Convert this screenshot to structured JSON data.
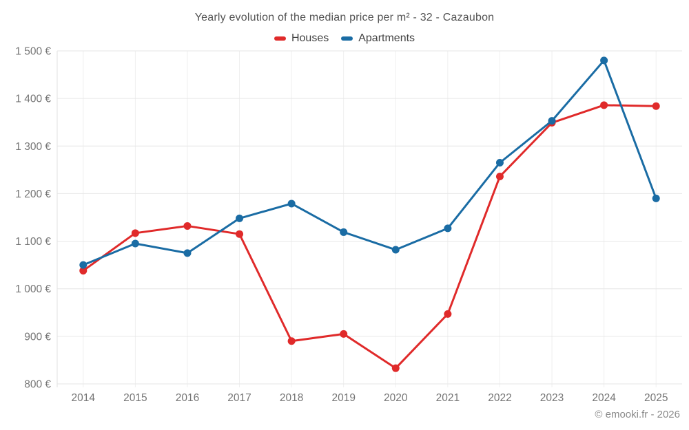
{
  "header": {
    "title": "Yearly evolution of the median price per m² - 32 - Cazaubon"
  },
  "legend": {
    "items": [
      {
        "label": "Houses",
        "color": "#e02a2a"
      },
      {
        "label": "Apartments",
        "color": "#1a6ca4"
      }
    ]
  },
  "footer": {
    "credit": "© emooki.fr - 2026"
  },
  "chart_data": {
    "type": "line",
    "title": "Yearly evolution of the median price per m² - 32 - Cazaubon",
    "categories": [
      "2014",
      "2015",
      "2016",
      "2017",
      "2018",
      "2019",
      "2020",
      "2021",
      "2022",
      "2023",
      "2024",
      "2025"
    ],
    "series": [
      {
        "name": "Houses",
        "color": "#e02a2a",
        "values": [
          1038,
          1117,
          1132,
          1115,
          890,
          905,
          833,
          947,
          1236,
          1349,
          1386,
          1384
        ]
      },
      {
        "name": "Apartments",
        "color": "#1a6ca4",
        "values": [
          1050,
          1095,
          1075,
          1148,
          1179,
          1119,
          1082,
          1127,
          1265,
          1353,
          1480,
          1190
        ]
      }
    ],
    "ylim": [
      800,
      1500
    ],
    "yticks": [
      {
        "value": 800,
        "label": "800 €"
      },
      {
        "value": 900,
        "label": "900 €"
      },
      {
        "value": 1000,
        "label": "1 000 €"
      },
      {
        "value": 1100,
        "label": "1 100 €"
      },
      {
        "value": 1200,
        "label": "1 200 €"
      },
      {
        "value": 1300,
        "label": "1 300 €"
      },
      {
        "value": 1400,
        "label": "1 400 €"
      },
      {
        "value": 1500,
        "label": "1 500 €"
      }
    ],
    "grid": true,
    "legend_position": "top",
    "xlabel": "",
    "ylabel": ""
  }
}
